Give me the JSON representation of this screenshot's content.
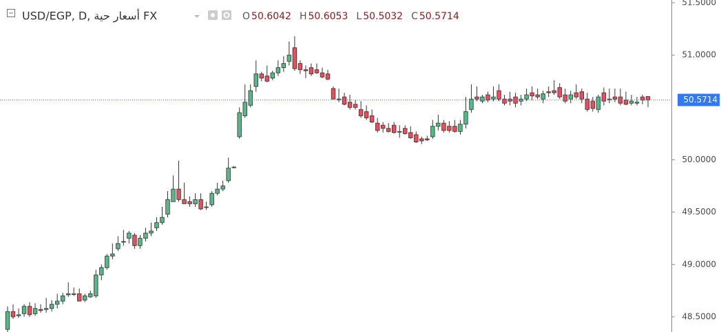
{
  "chart_data": {
    "type": "candlestick",
    "title": "USD/EGP, D, أسعار حية FX",
    "ohlc_header": [
      {
        "label": "O",
        "value": 50.6042
      },
      {
        "label": "H",
        "value": 50.6053
      },
      {
        "label": "L",
        "value": 50.5032
      },
      {
        "label": "C",
        "value": 50.5714
      }
    ],
    "up_color": "#53b987",
    "down_color": "#eb4d5c",
    "last_price_color": "#3179f5",
    "ylim": [
      48.355,
      51.526
    ],
    "yticks": [
      {
        "value": 48.5,
        "label": "48.5000"
      },
      {
        "value": 49,
        "label": "49.0000"
      },
      {
        "value": 49.5,
        "label": "49.5000"
      },
      {
        "value": 50,
        "label": "50.0000"
      },
      {
        "value": 51,
        "label": "51.0000"
      },
      {
        "value": 51.5,
        "label": "51.5000"
      }
    ],
    "candles": [
      [
        48.38,
        48.6,
        48.35,
        48.55
      ],
      [
        48.55,
        48.62,
        48.48,
        48.5
      ],
      [
        48.51,
        48.58,
        48.49,
        48.52
      ],
      [
        48.53,
        48.62,
        48.5,
        48.6
      ],
      [
        48.6,
        48.64,
        48.5,
        48.52
      ],
      [
        48.53,
        48.63,
        48.51,
        48.58
      ],
      [
        48.57,
        48.62,
        48.54,
        48.56
      ],
      [
        48.57,
        48.68,
        48.54,
        48.58
      ],
      [
        48.58,
        48.66,
        48.55,
        48.62
      ],
      [
        48.62,
        48.72,
        48.58,
        48.65
      ],
      [
        48.65,
        48.73,
        48.62,
        48.7
      ],
      [
        48.71,
        48.83,
        48.69,
        48.72
      ],
      [
        48.72,
        48.78,
        48.7,
        48.72
      ],
      [
        48.72,
        48.77,
        48.65,
        48.65
      ],
      [
        48.66,
        48.72,
        48.64,
        48.7
      ],
      [
        48.69,
        48.75,
        48.68,
        48.72
      ],
      [
        48.7,
        48.95,
        48.68,
        48.9
      ],
      [
        48.9,
        49.0,
        48.85,
        48.97
      ],
      [
        48.97,
        49.1,
        48.95,
        49.08
      ],
      [
        49.08,
        49.2,
        49.05,
        49.1
      ],
      [
        49.15,
        49.27,
        49.13,
        49.2
      ],
      [
        49.22,
        49.33,
        49.18,
        49.22
      ],
      [
        49.25,
        49.32,
        49.2,
        49.3
      ],
      [
        49.28,
        49.3,
        49.15,
        49.18
      ],
      [
        49.18,
        49.28,
        49.15,
        49.25
      ],
      [
        49.25,
        49.35,
        49.22,
        49.3
      ],
      [
        49.3,
        49.4,
        49.27,
        49.32
      ],
      [
        49.35,
        49.45,
        49.32,
        49.4
      ],
      [
        49.4,
        49.55,
        49.38,
        49.45
      ],
      [
        49.48,
        49.7,
        49.45,
        49.62
      ],
      [
        49.6,
        49.85,
        49.6,
        49.72
      ],
      [
        49.72,
        49.99,
        49.6,
        49.62
      ],
      [
        49.62,
        49.78,
        49.58,
        49.58
      ],
      [
        49.6,
        49.65,
        49.55,
        49.58
      ],
      [
        49.58,
        49.68,
        49.55,
        49.62
      ],
      [
        49.62,
        49.68,
        49.52,
        49.53
      ],
      [
        49.55,
        49.6,
        49.52,
        49.55
      ],
      [
        49.57,
        49.7,
        49.55,
        49.68
      ],
      [
        49.68,
        49.78,
        49.66,
        49.72
      ],
      [
        49.72,
        49.8,
        49.7,
        49.75
      ],
      [
        49.8,
        50.02,
        49.78,
        49.92
      ],
      [
        49.93,
        49.94,
        49.92,
        49.93
      ],
      [
        50.22,
        50.5,
        50.2,
        50.45
      ],
      [
        50.42,
        50.72,
        50.4,
        50.55
      ],
      [
        50.52,
        50.72,
        50.5,
        50.66
      ],
      [
        50.7,
        50.95,
        50.65,
        50.82
      ],
      [
        50.82,
        50.84,
        50.75,
        50.78
      ],
      [
        50.8,
        50.9,
        50.74,
        50.75
      ],
      [
        50.78,
        50.85,
        50.76,
        50.83
      ],
      [
        50.83,
        50.95,
        50.8,
        50.88
      ],
      [
        50.88,
        50.99,
        50.84,
        50.92
      ],
      [
        50.94,
        51.13,
        50.9,
        51.0
      ],
      [
        51.07,
        51.18,
        50.85,
        50.87
      ],
      [
        50.92,
        50.95,
        50.82,
        50.86
      ],
      [
        50.86,
        50.9,
        50.78,
        50.85
      ],
      [
        50.88,
        50.92,
        50.8,
        50.82
      ],
      [
        50.86,
        50.92,
        50.82,
        50.83
      ],
      [
        50.83,
        50.88,
        50.78,
        50.79
      ],
      [
        50.82,
        50.86,
        50.76,
        50.77
      ],
      [
        50.68,
        50.7,
        50.58,
        50.58
      ],
      [
        50.58,
        50.68,
        50.55,
        50.58
      ],
      [
        50.6,
        50.64,
        50.52,
        50.53
      ],
      [
        50.55,
        50.62,
        50.48,
        50.5
      ],
      [
        50.53,
        50.57,
        50.48,
        50.5
      ],
      [
        50.48,
        50.56,
        50.4,
        50.42
      ],
      [
        50.46,
        50.52,
        50.38,
        50.4
      ],
      [
        50.42,
        50.48,
        50.35,
        50.36
      ],
      [
        50.35,
        50.4,
        50.26,
        50.28
      ],
      [
        50.33,
        50.36,
        50.26,
        50.3
      ],
      [
        50.3,
        50.35,
        50.26,
        50.27
      ],
      [
        50.33,
        50.36,
        50.25,
        50.26
      ],
      [
        50.27,
        50.33,
        50.21,
        50.27
      ],
      [
        50.3,
        50.33,
        50.24,
        50.25
      ],
      [
        50.26,
        50.32,
        50.2,
        50.21
      ],
      [
        50.24,
        50.27,
        50.16,
        50.17
      ],
      [
        50.2,
        50.22,
        50.15,
        50.18
      ],
      [
        50.2,
        50.23,
        50.18,
        50.19
      ],
      [
        50.22,
        50.38,
        50.2,
        50.32
      ],
      [
        50.32,
        50.43,
        50.28,
        50.35
      ],
      [
        50.35,
        50.38,
        50.26,
        50.28
      ],
      [
        50.32,
        50.37,
        50.26,
        50.28
      ],
      [
        50.32,
        50.38,
        50.26,
        50.27
      ],
      [
        50.27,
        50.38,
        50.24,
        50.34
      ],
      [
        50.34,
        50.6,
        50.3,
        50.46
      ],
      [
        50.48,
        50.72,
        50.45,
        50.58
      ],
      [
        50.6,
        50.7,
        50.56,
        50.58
      ],
      [
        50.56,
        50.62,
        50.54,
        50.6
      ],
      [
        50.62,
        50.65,
        50.55,
        50.57
      ],
      [
        50.58,
        50.7,
        50.56,
        50.6
      ],
      [
        50.66,
        50.72,
        50.56,
        50.58
      ],
      [
        50.58,
        50.62,
        50.52,
        50.54
      ],
      [
        50.58,
        50.65,
        50.52,
        50.56
      ],
      [
        50.6,
        50.64,
        50.5,
        50.54
      ],
      [
        50.56,
        50.62,
        50.52,
        50.58
      ],
      [
        50.58,
        50.68,
        50.56,
        50.62
      ],
      [
        50.64,
        50.7,
        50.57,
        50.61
      ],
      [
        50.62,
        50.68,
        50.58,
        50.6
      ],
      [
        50.58,
        50.66,
        50.54,
        50.63
      ],
      [
        50.65,
        50.7,
        50.6,
        50.64
      ],
      [
        50.66,
        50.76,
        50.62,
        50.64
      ],
      [
        50.69,
        50.73,
        50.58,
        50.6
      ],
      [
        50.62,
        50.68,
        50.54,
        50.56
      ],
      [
        50.58,
        50.66,
        50.54,
        50.62
      ],
      [
        50.64,
        50.72,
        50.58,
        50.6
      ],
      [
        50.65,
        50.68,
        50.54,
        50.58
      ],
      [
        50.58,
        50.64,
        50.46,
        50.48
      ],
      [
        50.56,
        50.6,
        50.46,
        50.49
      ],
      [
        50.48,
        50.62,
        50.45,
        50.6
      ],
      [
        50.64,
        50.69,
        50.52,
        50.56
      ],
      [
        50.58,
        50.68,
        50.54,
        50.58
      ],
      [
        50.6,
        50.68,
        50.55,
        50.58
      ],
      [
        50.6,
        50.68,
        50.52,
        50.54
      ],
      [
        50.57,
        50.65,
        50.52,
        50.53
      ],
      [
        50.54,
        50.62,
        50.52,
        50.56
      ],
      [
        50.54,
        50.6,
        50.52,
        50.55
      ],
      [
        50.6,
        50.62,
        50.53,
        50.57
      ],
      [
        50.6042,
        50.6053,
        50.5032,
        50.5714
      ]
    ]
  }
}
